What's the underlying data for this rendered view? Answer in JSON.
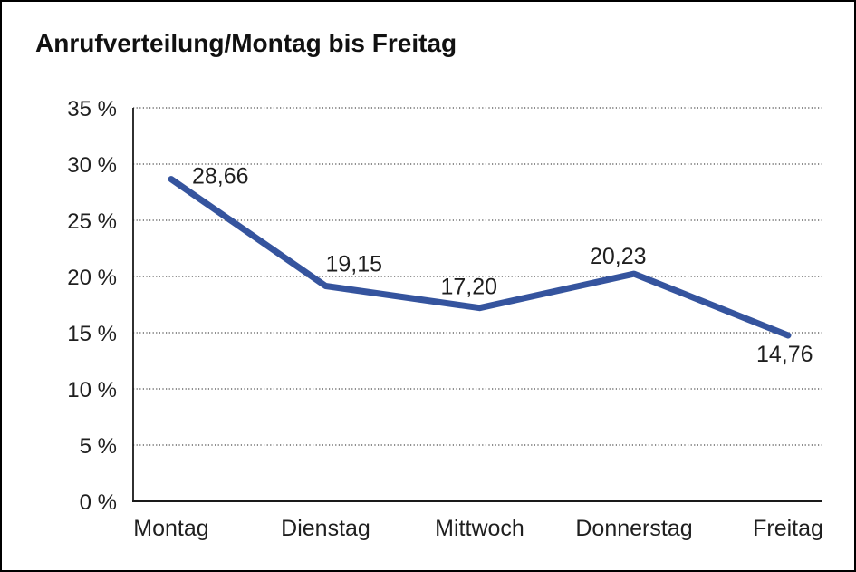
{
  "title": "Anrufverteilung/Montag bis Freitag",
  "colors": {
    "background": "#ffffff",
    "frame_border": "#000000",
    "line": "#35549E",
    "grid": "#4a4a4a",
    "axis": "#1a1a1a",
    "text": "#1f1f1f"
  },
  "chart_data": {
    "type": "line",
    "title": "Anrufverteilung/Montag bis Freitag",
    "categories": [
      "Montag",
      "Dienstag",
      "Mittwoch",
      "Donnerstag",
      "Freitag"
    ],
    "values": [
      28.66,
      19.15,
      17.2,
      20.23,
      14.76
    ],
    "point_labels": [
      "28,66",
      "19,15",
      "17,20",
      "20,23",
      "14,76"
    ],
    "xlabel": "",
    "ylabel": "",
    "ylim": [
      0,
      35
    ],
    "ytick_step": 5,
    "ytick_labels": [
      "0 %",
      "5 %",
      "10 %",
      "15 %",
      "20 %",
      "25 %",
      "30 %",
      "35 %"
    ],
    "grid": "horizontal-dotted",
    "legend": "none",
    "series": [
      {
        "name": "Anrufverteilung",
        "values": [
          28.66,
          19.15,
          17.2,
          20.23,
          14.76
        ]
      }
    ]
  }
}
